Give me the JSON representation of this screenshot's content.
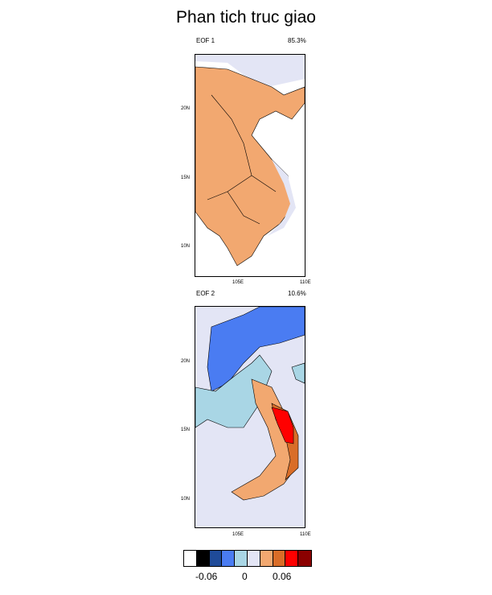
{
  "title": "Phan tich truc giao",
  "panels": [
    {
      "name": "EOF 1",
      "percent": "85.3%",
      "lat_ticks": [
        "20N",
        "15N",
        "10N"
      ],
      "lon_ticks": [
        "105E",
        "110E"
      ]
    },
    {
      "name": "EOF 2",
      "percent": "10.6%",
      "lat_ticks": [
        "20N",
        "15N",
        "10N"
      ],
      "lon_ticks": [
        "105E",
        "110E"
      ]
    }
  ],
  "colorbar": {
    "colors": [
      "#ffffff",
      "#000000",
      "#1f4b99",
      "#4a7cf2",
      "#a9d6e5",
      "#e3e5f5",
      "#f2a870",
      "#d96d28",
      "#ff0000",
      "#8b0000"
    ],
    "labels": [
      "-0.06",
      "0",
      "0.06"
    ]
  }
}
